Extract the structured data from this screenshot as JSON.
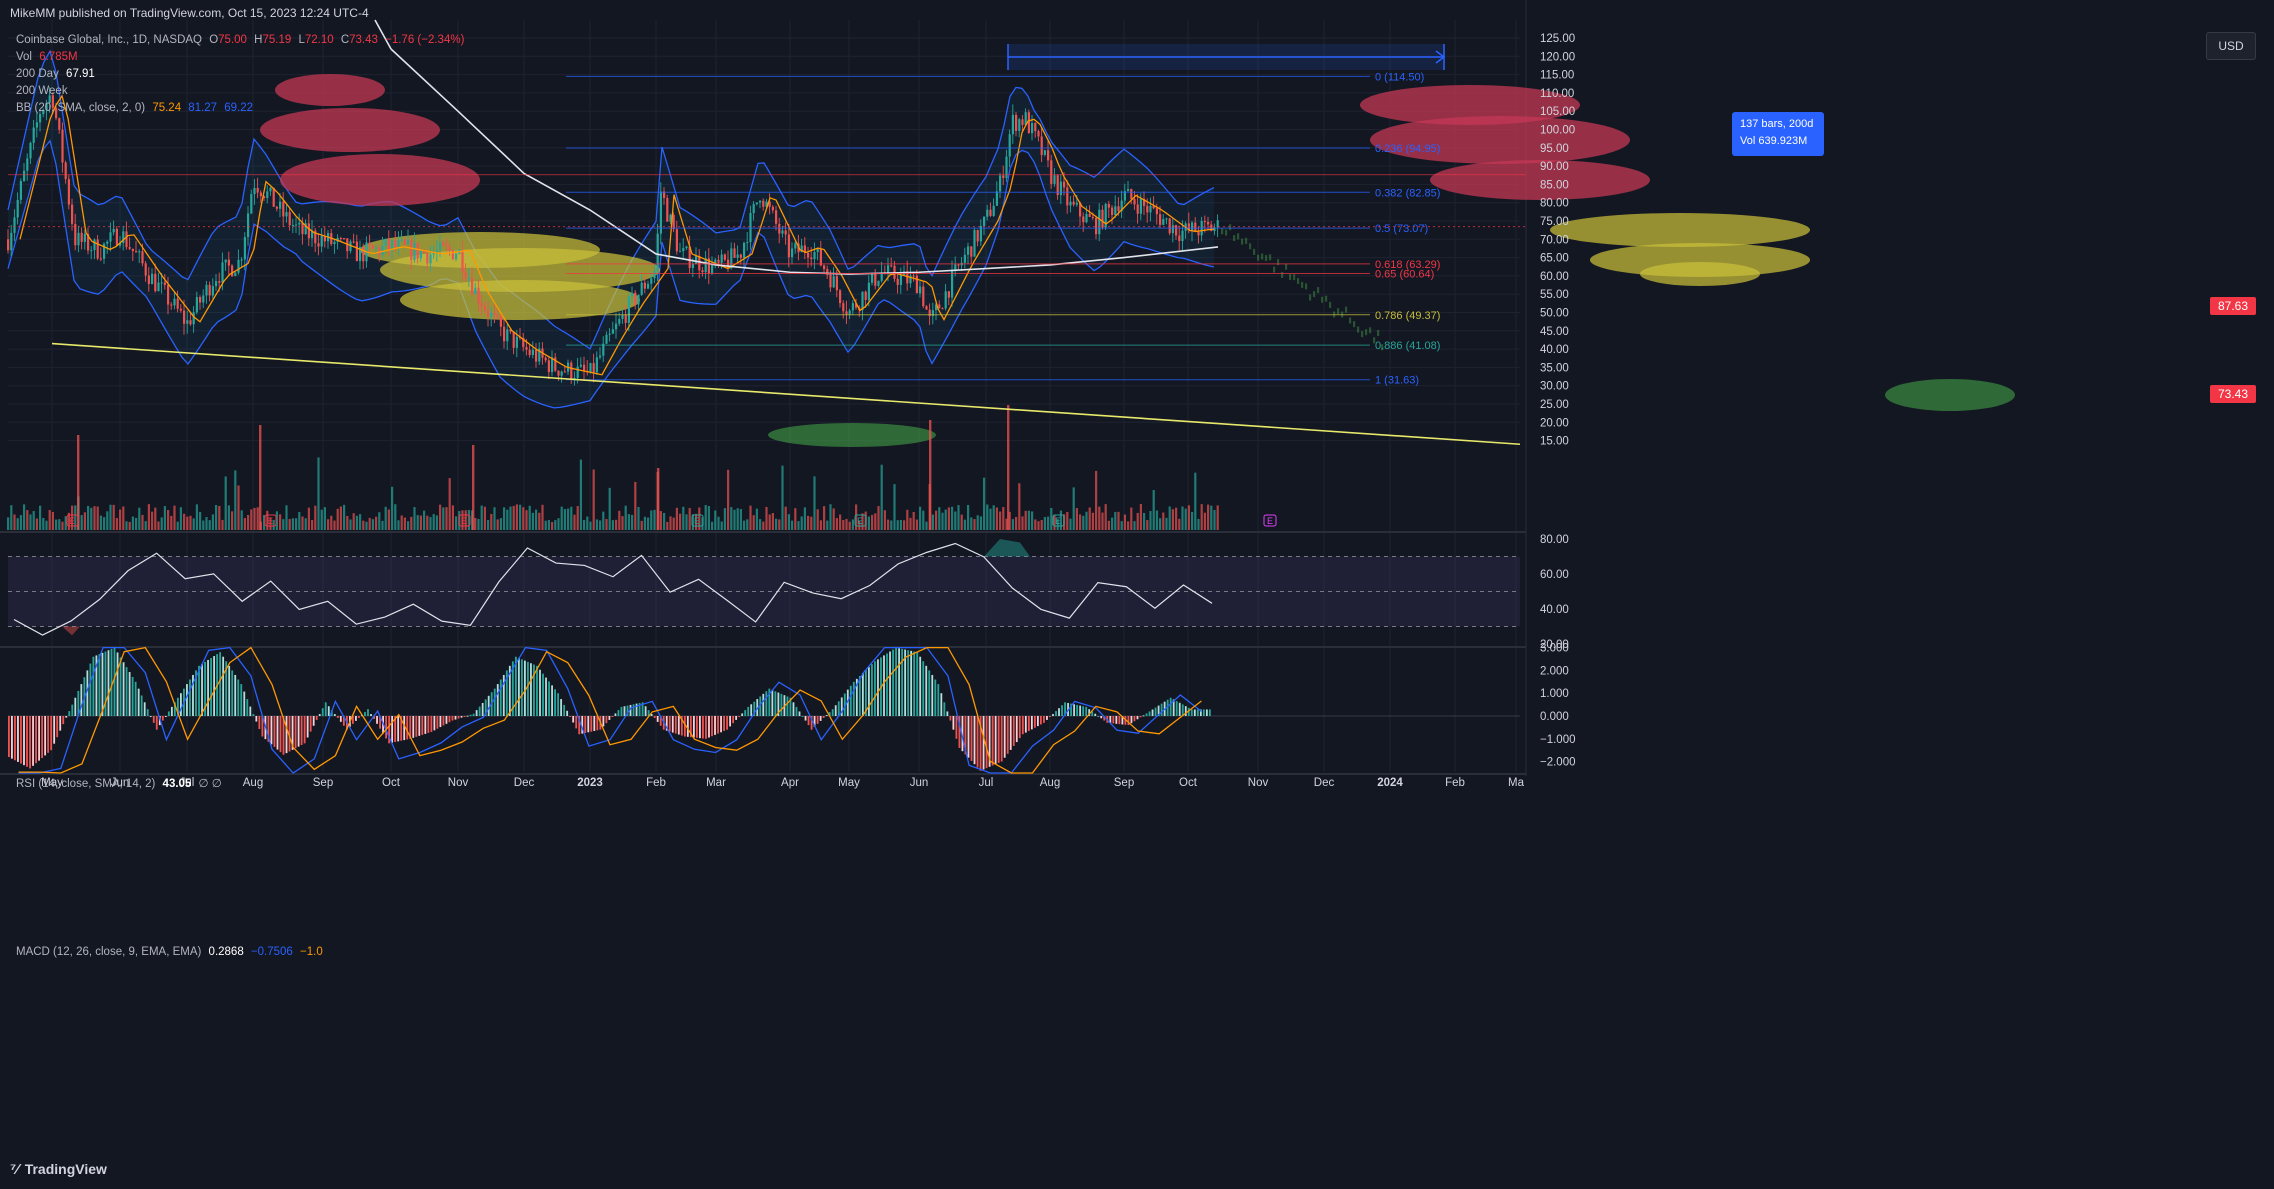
{
  "header": {
    "published": "MikeMM published on TradingView.com, Oct 15, 2023 12:24 UTC-4",
    "symbol": "Coinbase Global, Inc., 1D, NASDAQ",
    "ohlc": {
      "o": "75.00",
      "h": "75.19",
      "l": "72.10",
      "c": "73.43",
      "chg": "−1.76 (−2.34%)"
    },
    "vol_label": "Vol",
    "vol_value": "6.785M",
    "ma200d_label": "200 Day",
    "ma200d_value": "67.91",
    "ma200w_label": "200 Week",
    "bb_label": "BB (20, SMA, close, 2, 0)",
    "bb_values": [
      "75.24",
      "81.27",
      "69.22"
    ]
  },
  "currency_button": "USD",
  "price_tags": {
    "line_87": "87.63",
    "last": "73.43"
  },
  "measure": {
    "line1": "137 bars, 200d",
    "line2": "Vol 639.923M"
  },
  "brand": "TradingView",
  "chart_data": [
    {
      "type": "candlestick",
      "title": "Coinbase Global, Inc., 1D, NASDAQ",
      "ylim": [
        15,
        125
      ],
      "yticks": [
        "125.00",
        "120.00",
        "115.00",
        "110.00",
        "105.00",
        "100.00",
        "95.00",
        "90.00",
        "85.00",
        "80.00",
        "75.00",
        "70.00",
        "65.00",
        "60.00",
        "55.00",
        "50.00",
        "45.00",
        "40.00",
        "35.00",
        "30.00",
        "25.00",
        "20.00",
        "15.00"
      ],
      "x_ticks": [
        "May",
        "Jun",
        "Jul",
        "Aug",
        "Sep",
        "Oct",
        "Nov",
        "Dec",
        "2023",
        "Feb",
        "Mar",
        "Apr",
        "May",
        "Jun",
        "Jul",
        "Aug",
        "Sep",
        "Oct",
        "Nov",
        "Dec",
        "2024",
        "Feb",
        "Ma"
      ],
      "x": [
        "May 22",
        "Jun 22",
        "Jul 22",
        "Aug 22",
        "Sep 22",
        "Oct 22",
        "Nov 22",
        "Dec 22",
        "Jan 23",
        "Feb 23",
        "Mar 23",
        "Apr 23",
        "May 23",
        "Jun 23",
        "Jul 23",
        "Aug 23",
        "Sep 23",
        "Oct 23"
      ],
      "series": [
        {
          "name": "close",
          "values": [
            62,
            56,
            50,
            82,
            70,
            66,
            52,
            38,
            33,
            70,
            62,
            70,
            50,
            57,
            80,
            100,
            78,
            73.43
          ],
          "color": "#26a69a"
        },
        {
          "name": "200 Day",
          "values": [
            null,
            null,
            null,
            null,
            null,
            122,
            105,
            88,
            78,
            66,
            63,
            61,
            60.5,
            61,
            62,
            63,
            65,
            67.91
          ],
          "color": "#ffffff"
        }
      ],
      "fib_levels": [
        {
          "ratio": "0",
          "price": 114.5,
          "label": "0 (114.50)",
          "color": "#2962ff"
        },
        {
          "ratio": "0.236",
          "price": 94.95,
          "label": "0.236 (94.95)",
          "color": "#2962ff"
        },
        {
          "ratio": "0.382",
          "price": 82.85,
          "label": "0.382 (82.85)",
          "color": "#2962ff"
        },
        {
          "ratio": "0.5",
          "price": 73.07,
          "label": "0.5 (73.07)",
          "color": "#2962ff"
        },
        {
          "ratio": "0.618",
          "price": 63.29,
          "label": "0.618 (63.29)",
          "color": "#f23645"
        },
        {
          "ratio": "0.65",
          "price": 60.64,
          "label": "0.65 (60.64)",
          "color": "#f23645"
        },
        {
          "ratio": "0.786",
          "price": 49.37,
          "label": "0.786 (49.37)",
          "color": "#c9bf3a"
        },
        {
          "ratio": "0.886",
          "price": 41.08,
          "label": "0.886 (41.08)",
          "color": "#26a69a"
        },
        {
          "ratio": "1",
          "price": 31.63,
          "label": "1 (31.63)",
          "color": "#2962ff"
        }
      ],
      "horizontal_lines": [
        87.63,
        73.43
      ],
      "trendline": {
        "from": {
          "x": "May 22",
          "y": 41.5
        },
        "to": {
          "x": "Mar 24",
          "y": 14.0
        },
        "color": "#e8e86a"
      },
      "earnings_markers": [
        "May",
        "Aug",
        "Nov",
        "Feb",
        "May",
        "Aug",
        "Nov"
      ],
      "legend": "top-left",
      "grid": true
    },
    {
      "type": "line",
      "title": "RSI (14, close, SMA, 14, 2) 43.05 ∅ ∅",
      "label": "RSI (14, close, SMA, 14, 2)",
      "value": "43.05",
      "extra": "∅ ∅",
      "ylim": [
        20,
        80
      ],
      "yticks": [
        "80.00",
        "60.00",
        "40.00",
        "20.00"
      ],
      "bands": [
        70,
        50,
        30
      ],
      "values": [
        34,
        26,
        33,
        45,
        62,
        72,
        58,
        60,
        45,
        55,
        40,
        44,
        31,
        36,
        42,
        34,
        30,
        55,
        74,
        66,
        64,
        58,
        70,
        50,
        56,
        45,
        33,
        55,
        50,
        46,
        54,
        66,
        72,
        78,
        70,
        52,
        40,
        34,
        55,
        52,
        40,
        53,
        43.05
      ]
    },
    {
      "type": "bar",
      "title": "MACD (12, 26, close, 9, EMA, EMA) 0.2868 −0.7506 −1.0",
      "label": "MACD (12, 26, close, 9, EMA, EMA)",
      "values_text": [
        "0.2868",
        "−0.7506",
        "−1.0"
      ],
      "ylim": [
        -2.5,
        3.0
      ],
      "yticks": [
        "3.000",
        "2.000",
        "1.000",
        "0.000",
        "−1.000",
        "−2.000"
      ],
      "histogram": [
        -1.8,
        -2.3,
        -1.5,
        0.5,
        2.6,
        3.0,
        1.5,
        -0.6,
        0.8,
        2.2,
        2.8,
        1.4,
        -0.9,
        -1.7,
        -1.2,
        0.6,
        -0.6,
        0.3,
        -1.2,
        -1.0,
        -0.7,
        -0.2,
        0.1,
        1.2,
        2.6,
        2.2,
        1.0,
        -0.8,
        -0.6,
        0.4,
        0.6,
        -0.6,
        -0.9,
        -1.0,
        -0.6,
        0.4,
        1.2,
        0.8,
        -0.6,
        0.3,
        1.5,
        2.4,
        3.0,
        2.8,
        1.4,
        -1.4,
        -2.4,
        -2.0,
        -0.8,
        -0.3,
        0.6,
        0.4,
        -0.3,
        -0.4,
        0.2,
        0.8,
        0.2868
      ]
    }
  ]
}
